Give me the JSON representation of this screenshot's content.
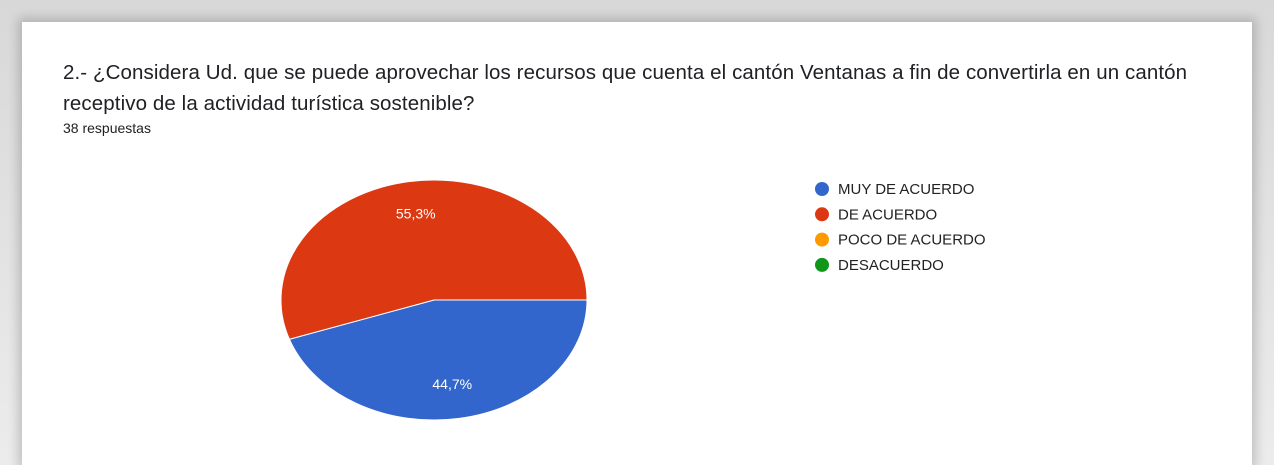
{
  "chart_data": {
    "type": "pie",
    "title": "2.- ¿Considera Ud. que se puede aprovechar los recursos que cuenta el cantón Ventanas a fin de convertirla en un cantón receptivo de la actividad turística sostenible?",
    "subtitle": "38 respuestas",
    "categories": [
      "MUY DE ACUERDO",
      "DE ACUERDO",
      "POCO DE ACUERDO",
      "DESACUERDO"
    ],
    "values": [
      44.7,
      55.3,
      0,
      0
    ],
    "value_labels": [
      "44,7%",
      "55,3%",
      null,
      null
    ],
    "colors": [
      "#3366cc",
      "#dc3912",
      "#ff9900",
      "#109618"
    ],
    "legend": "right"
  }
}
